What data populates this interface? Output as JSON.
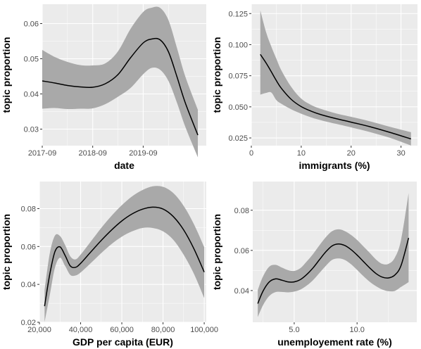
{
  "chart_data": [
    {
      "type": "line",
      "xlabel": "date",
      "ylabel": "topic proportion",
      "x_ticks": [
        {
          "value": 0,
          "label": "2017-09"
        },
        {
          "value": 12,
          "label": "2018-09"
        },
        {
          "value": 24,
          "label": "2019-09"
        }
      ],
      "y_ticks": [
        {
          "value": 0.03,
          "label": "0.03"
        },
        {
          "value": 0.04,
          "label": "0.04"
        },
        {
          "value": 0.05,
          "label": "0.05"
        },
        {
          "value": 0.06,
          "label": "0.06"
        }
      ],
      "xlim": [
        0,
        39
      ],
      "ylim": [
        0.0253,
        0.0655
      ],
      "x_minor_breaks": [
        6,
        18,
        30
      ],
      "y_minor_breaks": [
        0.035,
        0.045,
        0.055
      ],
      "x": [
        0,
        3,
        6,
        9,
        12,
        15,
        18,
        21,
        24,
        26,
        28,
        30,
        32,
        34,
        37
      ],
      "fit": [
        0.0437,
        0.0431,
        0.0424,
        0.042,
        0.0419,
        0.0429,
        0.0455,
        0.0503,
        0.0545,
        0.0556,
        0.0554,
        0.052,
        0.045,
        0.0375,
        0.0283
      ],
      "lower": [
        0.0358,
        0.036,
        0.0357,
        0.0358,
        0.0359,
        0.0371,
        0.0392,
        0.0417,
        0.0456,
        0.0474,
        0.0469,
        0.0437,
        0.0376,
        0.0307,
        0.022
      ],
      "upper": [
        0.0525,
        0.0505,
        0.0491,
        0.0482,
        0.0481,
        0.0487,
        0.0521,
        0.0585,
        0.0633,
        0.0645,
        0.0645,
        0.061,
        0.0532,
        0.045,
        0.0355
      ]
    },
    {
      "type": "line",
      "xlabel": "immigrants (%)",
      "ylabel": "topic proportion",
      "x_ticks": [
        {
          "value": 0,
          "label": "0"
        },
        {
          "value": 10,
          "label": "10"
        },
        {
          "value": 20,
          "label": "20"
        },
        {
          "value": 30,
          "label": "30"
        }
      ],
      "y_ticks": [
        {
          "value": 0.025,
          "label": "0.025"
        },
        {
          "value": 0.05,
          "label": "0.050"
        },
        {
          "value": 0.075,
          "label": "0.075"
        },
        {
          "value": 0.1,
          "label": "0.100"
        },
        {
          "value": 0.125,
          "label": "0.125"
        }
      ],
      "xlim": [
        0,
        33.3
      ],
      "ylim": [
        0.0188,
        0.1325
      ],
      "x_minor_breaks": [
        5,
        15,
        25
      ],
      "y_minor_breaks": [
        0.0375,
        0.0625,
        0.0875,
        0.1125
      ],
      "x": [
        1.8,
        3,
        4,
        5,
        6,
        8,
        10,
        12,
        14,
        17,
        20,
        24,
        28,
        32
      ],
      "fit": [
        0.0922,
        0.085,
        0.0782,
        0.0712,
        0.065,
        0.056,
        0.0502,
        0.0465,
        0.0437,
        0.0405,
        0.0377,
        0.0338,
        0.0292,
        0.0242
      ],
      "lower": [
        0.0598,
        0.0612,
        0.0615,
        0.0555,
        0.0525,
        0.048,
        0.0445,
        0.0415,
        0.0392,
        0.0363,
        0.0335,
        0.0295,
        0.0248,
        0.0189
      ],
      "upper": [
        0.1275,
        0.1095,
        0.0985,
        0.0888,
        0.0795,
        0.066,
        0.0566,
        0.0515,
        0.0483,
        0.0447,
        0.042,
        0.0381,
        0.0337,
        0.0296
      ]
    },
    {
      "type": "line",
      "xlabel": "GDP per capita (EUR)",
      "ylabel": "topic proportion",
      "x_ticks": [
        {
          "value": 20000,
          "label": "20,000"
        },
        {
          "value": 40000,
          "label": "40,000"
        },
        {
          "value": 60000,
          "label": "60,000"
        },
        {
          "value": 80000,
          "label": "80,000"
        },
        {
          "value": 100000,
          "label": "100,000"
        }
      ],
      "y_ticks": [
        {
          "value": 0.02,
          "label": "0.02"
        },
        {
          "value": 0.04,
          "label": "0.04"
        },
        {
          "value": 0.06,
          "label": "0.06"
        },
        {
          "value": 0.08,
          "label": "0.08"
        }
      ],
      "xlim": [
        20000,
        101000
      ],
      "ylim": [
        0.02,
        0.0943
      ],
      "x_minor_breaks": [
        30000,
        50000,
        70000,
        90000
      ],
      "y_minor_breaks": [
        0.03,
        0.05,
        0.07
      ],
      "x": [
        22500,
        25000,
        27500,
        30000,
        32500,
        35000,
        37500,
        40000,
        45000,
        50000,
        55000,
        60000,
        65000,
        70000,
        75000,
        80000,
        85000,
        90000,
        95000,
        100000
      ],
      "fit": [
        0.0285,
        0.0452,
        0.0572,
        0.0598,
        0.0552,
        0.0497,
        0.049,
        0.0511,
        0.0572,
        0.0632,
        0.0687,
        0.0735,
        0.0772,
        0.0797,
        0.0808,
        0.0798,
        0.0758,
        0.0688,
        0.0588,
        0.0465
      ],
      "lower": [
        0.02,
        0.0342,
        0.0487,
        0.0541,
        0.0497,
        0.045,
        0.0447,
        0.0463,
        0.0513,
        0.0565,
        0.0613,
        0.0652,
        0.068,
        0.0698,
        0.0698,
        0.068,
        0.0635,
        0.0557,
        0.0456,
        0.0328
      ],
      "upper": [
        0.037,
        0.0562,
        0.0657,
        0.0655,
        0.0607,
        0.0548,
        0.0532,
        0.0557,
        0.0627,
        0.0698,
        0.0762,
        0.0818,
        0.0865,
        0.0898,
        0.0918,
        0.0915,
        0.0882,
        0.0815,
        0.0718,
        0.0597
      ]
    },
    {
      "type": "line",
      "xlabel": "unemployement rate (%)",
      "ylabel": "topic proportion",
      "x_ticks": [
        {
          "value": 5,
          "label": "5.0"
        },
        {
          "value": 10,
          "label": "10.0"
        }
      ],
      "y_ticks": [
        {
          "value": 0.04,
          "label": "0.04"
        },
        {
          "value": 0.06,
          "label": "0.06"
        },
        {
          "value": 0.08,
          "label": "0.08"
        }
      ],
      "xlim": [
        1.7,
        14.75
      ],
      "ylim": [
        0.0242,
        0.0943
      ],
      "x_minor_breaks": [
        2.5,
        7.5,
        12.5
      ],
      "y_minor_breaks": [
        0.05,
        0.07
      ],
      "x": [
        2.1,
        2.5,
        3,
        3.5,
        4,
        4.5,
        5,
        5.5,
        6,
        6.5,
        7,
        7.5,
        8,
        8.5,
        9,
        9.5,
        10,
        10.5,
        11,
        11.5,
        12,
        12.5,
        13,
        13.5,
        14.1
      ],
      "fit": [
        0.0335,
        0.0395,
        0.0442,
        0.0458,
        0.0452,
        0.0443,
        0.0443,
        0.0455,
        0.048,
        0.0513,
        0.0553,
        0.0592,
        0.0622,
        0.0632,
        0.0625,
        0.0605,
        0.0577,
        0.0545,
        0.0513,
        0.0485,
        0.0467,
        0.0463,
        0.0477,
        0.0525,
        0.0662
      ],
      "lower": [
        0.0268,
        0.0325,
        0.0372,
        0.0392,
        0.0393,
        0.0391,
        0.0395,
        0.0405,
        0.0425,
        0.0452,
        0.0487,
        0.0522,
        0.0552,
        0.056,
        0.0553,
        0.0532,
        0.0503,
        0.0472,
        0.0444,
        0.0422,
        0.0405,
        0.0397,
        0.0398,
        0.0418,
        0.0442
      ],
      "upper": [
        0.0402,
        0.0468,
        0.0518,
        0.0528,
        0.0515,
        0.0502,
        0.0498,
        0.0512,
        0.0545,
        0.0582,
        0.0625,
        0.0665,
        0.0695,
        0.0705,
        0.0697,
        0.0678,
        0.0652,
        0.062,
        0.0588,
        0.0555,
        0.0533,
        0.0533,
        0.0563,
        0.0652,
        0.0885
      ]
    }
  ]
}
